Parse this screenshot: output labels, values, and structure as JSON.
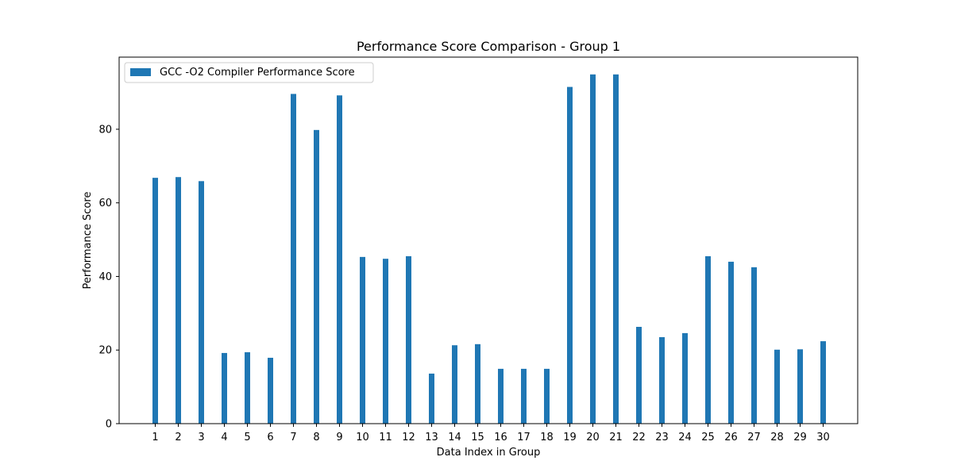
{
  "chart_data": {
    "type": "bar",
    "title": "Performance Score Comparison - Group 1",
    "xlabel": "Data Index in Group",
    "ylabel": "Performance Score",
    "categories": [
      "1",
      "2",
      "3",
      "4",
      "5",
      "6",
      "7",
      "8",
      "9",
      "10",
      "11",
      "12",
      "13",
      "14",
      "15",
      "16",
      "17",
      "18",
      "19",
      "20",
      "21",
      "22",
      "23",
      "24",
      "25",
      "26",
      "27",
      "28",
      "29",
      "30"
    ],
    "series": [
      {
        "name": "GCC -O2 Compiler Performance Score",
        "color": "#1f77b4",
        "values": [
          66.8,
          67.0,
          65.9,
          19.2,
          19.4,
          17.9,
          89.6,
          79.8,
          89.2,
          45.3,
          44.8,
          45.5,
          13.6,
          21.3,
          21.6,
          14.9,
          14.9,
          14.9,
          91.5,
          94.9,
          94.9,
          26.3,
          23.5,
          24.6,
          45.5,
          44.0,
          42.5,
          20.1,
          20.2,
          22.4
        ]
      }
    ],
    "ylim": [
      0,
      99.6
    ],
    "yticks": [
      0,
      20,
      40,
      60,
      80
    ],
    "legend_position": "top-left",
    "grid": false
  }
}
